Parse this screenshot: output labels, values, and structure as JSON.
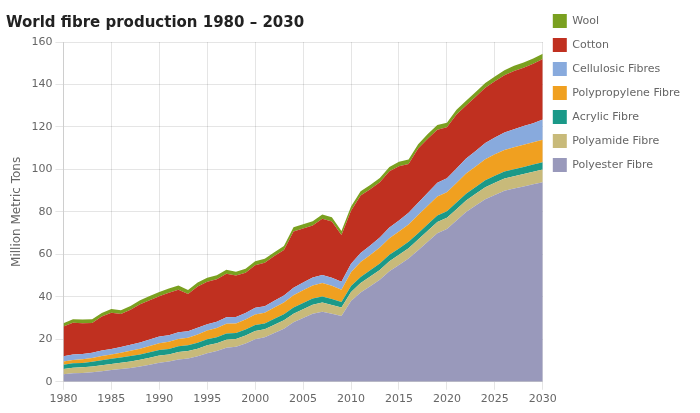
{
  "chart_data": {
    "type": "area",
    "title": "World fibre production 1980 – 2030",
    "y_label": "Million Metric Tons",
    "x": [
      1980,
      1981,
      1982,
      1983,
      1984,
      1985,
      1986,
      1987,
      1988,
      1989,
      1990,
      1991,
      1992,
      1993,
      1994,
      1995,
      1996,
      1997,
      1998,
      1999,
      2000,
      2001,
      2002,
      2003,
      2004,
      2005,
      2006,
      2007,
      2008,
      2009,
      2010,
      2011,
      2012,
      2013,
      2014,
      2015,
      2016,
      2017,
      2018,
      2019,
      2020,
      2021,
      2022,
      2023,
      2024,
      2025,
      2026,
      2027,
      2028,
      2029,
      2030
    ],
    "series": [
      {
        "name": "Polyester Fibre",
        "color": "#9999bb",
        "values": [
          3.5,
          4.0,
          4.2,
          4.5,
          5.0,
          5.5,
          6.0,
          6.5,
          7.2,
          8.0,
          9.0,
          9.5,
          10.5,
          11.0,
          12.0,
          13.5,
          14.5,
          16.0,
          16.5,
          18.0,
          20.0,
          21.0,
          23.0,
          25.0,
          28.0,
          30.0,
          32.0,
          33.0,
          32.0,
          31.0,
          38.0,
          42.0,
          45.0,
          48.0,
          52.0,
          55.0,
          58.0,
          62.0,
          66.0,
          70.0,
          72.0,
          76.0,
          80.0,
          83.0,
          86.0,
          88.0,
          90.0,
          91.0,
          92.0,
          93.0,
          94.0
        ]
      },
      {
        "name": "Polyamide Fibre",
        "color": "#c8ba7a",
        "values": [
          2.5,
          2.6,
          2.6,
          2.7,
          2.8,
          2.9,
          3.0,
          3.1,
          3.2,
          3.3,
          3.4,
          3.4,
          3.5,
          3.5,
          3.6,
          3.7,
          3.7,
          3.8,
          3.7,
          3.8,
          3.9,
          3.8,
          3.9,
          4.0,
          4.1,
          4.2,
          4.3,
          4.3,
          4.2,
          4.0,
          4.3,
          4.5,
          4.6,
          4.7,
          4.8,
          4.8,
          4.9,
          5.0,
          5.1,
          5.2,
          5.2,
          5.3,
          5.4,
          5.5,
          5.6,
          5.7,
          5.7,
          5.8,
          5.8,
          5.9,
          6.0
        ]
      },
      {
        "name": "Acrylic Fibre",
        "color": "#1a9988",
        "values": [
          2.0,
          2.1,
          2.1,
          2.2,
          2.3,
          2.4,
          2.4,
          2.5,
          2.5,
          2.6,
          2.6,
          2.6,
          2.7,
          2.7,
          2.8,
          2.8,
          2.8,
          2.9,
          2.8,
          2.8,
          2.8,
          2.7,
          2.8,
          2.8,
          2.9,
          2.9,
          2.9,
          2.9,
          2.8,
          2.6,
          2.8,
          2.9,
          2.9,
          3.0,
          3.0,
          3.0,
          3.0,
          3.0,
          3.1,
          3.1,
          3.1,
          3.1,
          3.2,
          3.2,
          3.3,
          3.3,
          3.3,
          3.3,
          3.4,
          3.4,
          3.4
        ]
      },
      {
        "name": "Polypropylene Fibre",
        "color": "#f0a020",
        "values": [
          1.5,
          1.6,
          1.7,
          1.8,
          2.0,
          2.1,
          2.3,
          2.5,
          2.7,
          3.0,
          3.2,
          3.3,
          3.5,
          3.6,
          3.9,
          4.1,
          4.3,
          4.6,
          4.5,
          4.7,
          5.0,
          5.0,
          5.3,
          5.5,
          5.8,
          6.0,
          6.2,
          6.3,
          6.2,
          5.8,
          6.5,
          7.0,
          7.2,
          7.5,
          7.8,
          8.0,
          8.2,
          8.5,
          8.7,
          9.0,
          9.0,
          9.2,
          9.5,
          9.7,
          9.9,
          10.1,
          10.2,
          10.3,
          10.4,
          10.5,
          10.6
        ]
      },
      {
        "name": "Cellulosic Fibres",
        "color": "#88aadd",
        "values": [
          2.5,
          2.5,
          2.5,
          2.5,
          2.6,
          2.6,
          2.7,
          2.8,
          2.9,
          3.0,
          3.1,
          3.1,
          3.1,
          3.0,
          3.1,
          3.0,
          3.0,
          3.1,
          3.0,
          3.1,
          3.2,
          3.1,
          3.2,
          3.3,
          3.5,
          3.6,
          3.7,
          3.8,
          3.8,
          3.7,
          4.0,
          4.3,
          4.5,
          4.8,
          5.0,
          5.2,
          5.5,
          5.8,
          6.1,
          6.4,
          6.5,
          6.8,
          7.0,
          7.3,
          7.6,
          7.9,
          8.2,
          8.5,
          8.8,
          9.0,
          9.5
        ]
      },
      {
        "name": "Cotton",
        "color": "#c03020",
        "values": [
          14.0,
          15.0,
          14.5,
          14.0,
          16.0,
          17.0,
          15.5,
          16.5,
          18.0,
          18.5,
          19.0,
          20.0,
          20.0,
          17.5,
          19.5,
          20.0,
          20.0,
          20.5,
          19.5,
          19.0,
          20.0,
          20.5,
          21.0,
          21.5,
          26.5,
          25.5,
          24.5,
          26.5,
          26.5,
          22.0,
          25.0,
          27.0,
          26.5,
          26.0,
          26.5,
          25.5,
          23.0,
          25.5,
          25.5,
          25.0,
          24.0,
          25.5,
          25.0,
          25.5,
          26.0,
          26.5,
          27.0,
          27.5,
          27.5,
          28.0,
          28.5
        ]
      },
      {
        "name": "Wool",
        "color": "#7aa020",
        "values": [
          1.6,
          1.7,
          1.7,
          1.7,
          1.7,
          1.8,
          1.8,
          1.8,
          1.9,
          2.0,
          2.0,
          2.0,
          2.0,
          1.9,
          1.9,
          1.9,
          1.9,
          1.9,
          1.8,
          1.8,
          1.9,
          1.8,
          1.8,
          1.9,
          2.0,
          2.0,
          2.0,
          2.0,
          2.0,
          1.9,
          2.0,
          2.0,
          2.0,
          2.0,
          2.1,
          2.1,
          2.1,
          2.1,
          2.2,
          2.2,
          2.2,
          2.2,
          2.2,
          2.3,
          2.3,
          2.3,
          2.3,
          2.4,
          2.4,
          2.4,
          2.5
        ]
      }
    ],
    "stacked": true,
    "xlim": [
      1980,
      2030
    ],
    "xticks": [
      1980,
      1985,
      1990,
      1995,
      2000,
      2005,
      2010,
      2015,
      2020,
      2025,
      2030
    ],
    "ylim": [
      0,
      160
    ],
    "yticks": [
      0,
      20,
      40,
      60,
      80,
      100,
      120,
      140,
      160
    ],
    "grid": true,
    "legend": "right"
  }
}
